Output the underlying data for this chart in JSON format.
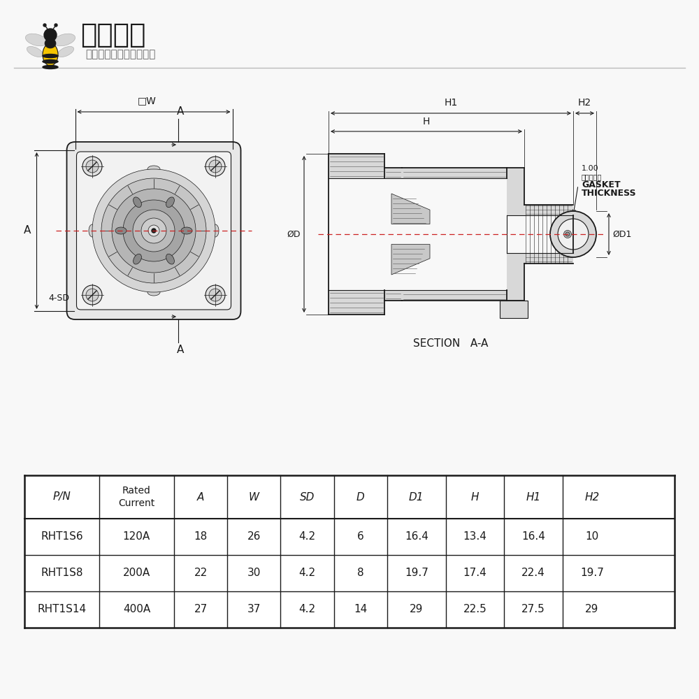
{
  "bg_color": "#f8f8f8",
  "logo_text_main": "电蜂优选",
  "logo_text_sub": "原厂直采电子连接器商城",
  "table_headers": [
    "P/N",
    "Rated\nCurrent",
    "A",
    "W",
    "SD",
    "D",
    "D1",
    "H",
    "H1",
    "H2"
  ],
  "table_rows": [
    [
      "RHT1S6",
      "120A",
      "18",
      "26",
      "4.2",
      "6",
      "16.4",
      "13.4",
      "16.4",
      "10"
    ],
    [
      "RHT1S8",
      "200A",
      "22",
      "30",
      "4.2",
      "8",
      "19.7",
      "17.4",
      "22.4",
      "19.7"
    ],
    [
      "RHT1S14",
      "400A",
      "27",
      "37",
      "4.2",
      "14",
      "29",
      "22.5",
      "27.5",
      "29"
    ]
  ],
  "section_label": "SECTION   A-A",
  "gasket_label1": "1.00",
  "gasket_label2": "密封层厚度",
  "gasket_label3": "GASKET",
  "gasket_label4": "THICKNESS",
  "line_color": "#1a1a1a",
  "hatch_color": "#555555",
  "gray_fill": "#d8d8d8",
  "light_fill": "#f0f0f0",
  "white_fill": "#ffffff"
}
